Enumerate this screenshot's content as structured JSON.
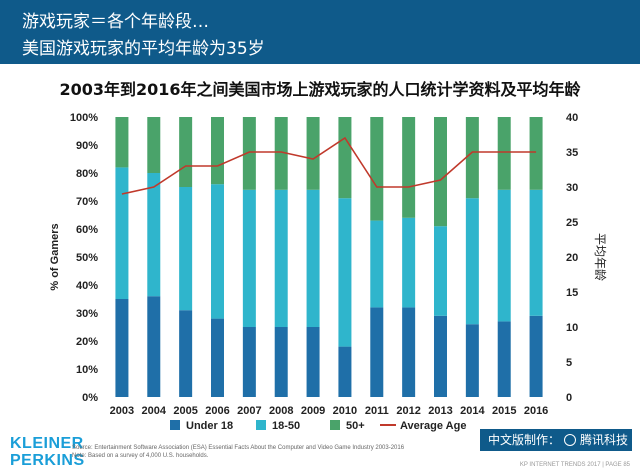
{
  "header": {
    "line1": "游戏玩家＝各个年龄段…",
    "line2": "美国游戏玩家的平均年龄为35岁"
  },
  "footer": {
    "logo_line1": "KLEINER",
    "logo_line2": "PERKINS",
    "source_line1": "Source: Entertainment Software Association (ESA) Essential Facts About the Computer and Video Game Industry 2003-2016",
    "source_line2": "Note: Based on a survey of 4,000 U.S. households.",
    "badge_text": "中文版制作：",
    "badge_brand": "腾讯科技",
    "page_ref": "KP INTERNET TRENDS 2017  |  PAGE 85"
  },
  "colors": {
    "header_bg": "#0f5a8a",
    "under18": "#1f6fa8",
    "age18to50": "#2fb5cc",
    "age50plus": "#4aa36a",
    "average": "#c0392b"
  },
  "chart_data": {
    "type": "bar",
    "stacked": true,
    "title": "2003年到2016年之间美国市场上游戏玩家的人口统计学资料及平均年龄",
    "ylabel": "% of Gamers",
    "y2label": "平均年龄",
    "ylim": [
      0,
      100
    ],
    "y2lim": [
      0,
      40
    ],
    "yticks": [
      "0%",
      "10%",
      "20%",
      "30%",
      "40%",
      "50%",
      "60%",
      "70%",
      "80%",
      "90%",
      "100%"
    ],
    "y2ticks": [
      "0",
      "5",
      "10",
      "15",
      "20",
      "25",
      "30",
      "35",
      "40"
    ],
    "categories": [
      "2003",
      "2004",
      "2005",
      "2006",
      "2007",
      "2008",
      "2009",
      "2010",
      "2011",
      "2012",
      "2013",
      "2014",
      "2015",
      "2016"
    ],
    "series": [
      {
        "name": "Under 18",
        "values": [
          35,
          36,
          31,
          28,
          25,
          25,
          25,
          18,
          32,
          32,
          29,
          26,
          27,
          29
        ]
      },
      {
        "name": "18-50",
        "values": [
          47,
          44,
          44,
          48,
          49,
          49,
          49,
          53,
          31,
          32,
          32,
          45,
          47,
          45
        ]
      },
      {
        "name": "50+",
        "values": [
          18,
          20,
          25,
          24,
          26,
          26,
          26,
          29,
          37,
          36,
          39,
          29,
          26,
          26
        ]
      },
      {
        "name": "Average Age",
        "type": "line",
        "axis": "y2",
        "values": [
          29,
          30,
          33,
          33,
          35,
          35,
          34,
          37,
          30,
          30,
          31,
          35,
          35,
          35
        ]
      }
    ],
    "legend_position": "bottom",
    "grid": false
  }
}
